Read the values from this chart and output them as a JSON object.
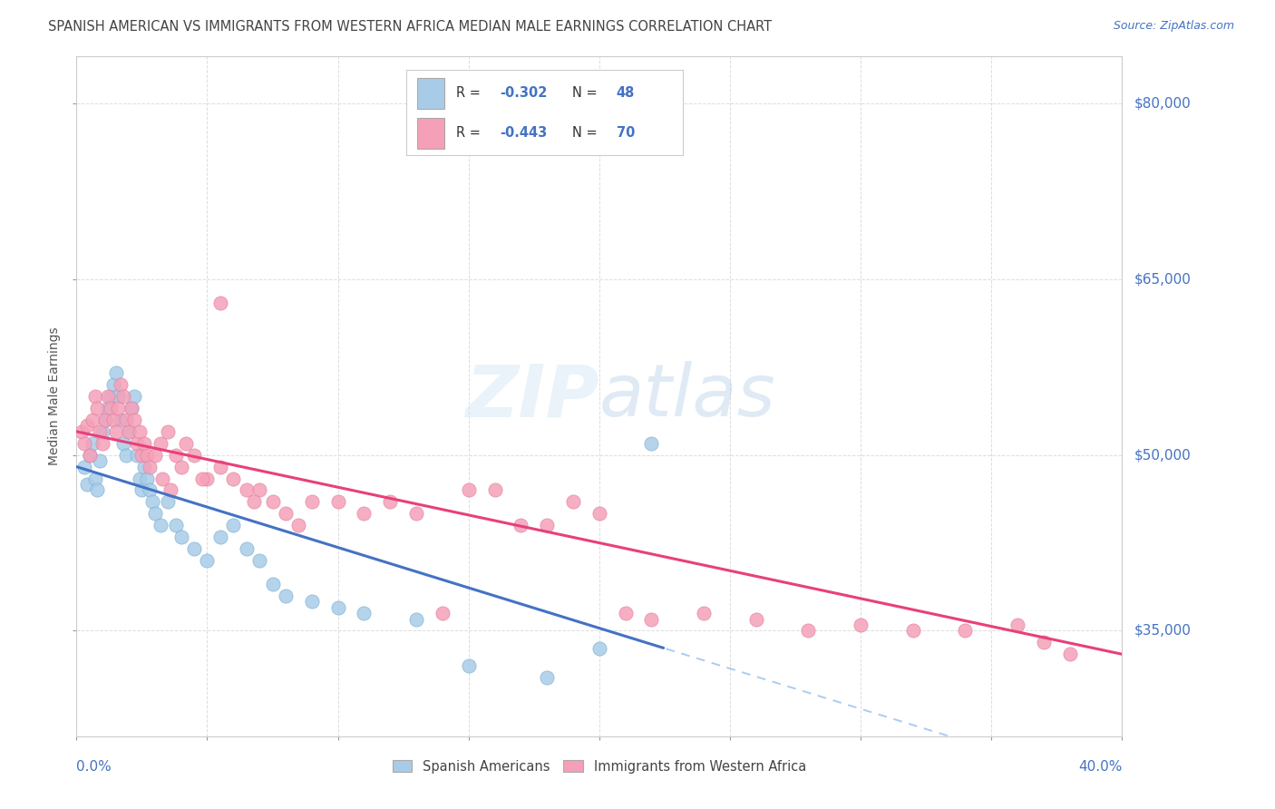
{
  "title": "SPANISH AMERICAN VS IMMIGRANTS FROM WESTERN AFRICA MEDIAN MALE EARNINGS CORRELATION CHART",
  "source": "Source: ZipAtlas.com",
  "ylabel": "Median Male Earnings",
  "y_ticks": [
    35000,
    50000,
    65000,
    80000
  ],
  "y_tick_labels": [
    "$35,000",
    "$50,000",
    "$65,000",
    "$80,000"
  ],
  "x_min": 0.0,
  "x_max": 40.0,
  "y_min": 26000,
  "y_max": 84000,
  "R_blue": -0.302,
  "N_blue": 48,
  "R_pink": -0.443,
  "N_pink": 70,
  "blue_color": "#a8cce8",
  "pink_color": "#f5a0b8",
  "blue_line_color": "#4472c4",
  "pink_line_color": "#e8407a",
  "axis_color": "#999999",
  "grid_color": "#dddddd",
  "label_color": "#4472c4",
  "title_color": "#444444",
  "legend_label_blue": "Spanish Americans",
  "legend_label_pink": "Immigrants from Western Africa",
  "blue_solid_end_x": 22.5,
  "blue_line_y0": 49000,
  "blue_line_y_at_22": 33500,
  "pink_line_y0": 52000,
  "pink_line_y1": 33000,
  "blue_x": [
    0.3,
    0.4,
    0.5,
    0.6,
    0.7,
    0.8,
    0.9,
    1.0,
    1.1,
    1.2,
    1.3,
    1.4,
    1.5,
    1.6,
    1.7,
    1.8,
    1.9,
    2.0,
    2.1,
    2.2,
    2.3,
    2.4,
    2.5,
    2.6,
    2.7,
    2.8,
    2.9,
    3.0,
    3.2,
    3.5,
    3.8,
    4.0,
    4.5,
    5.0,
    5.5,
    6.0,
    6.5,
    7.0,
    7.5,
    8.0,
    9.0,
    10.0,
    11.0,
    13.0,
    15.0,
    18.0,
    20.0,
    22.0
  ],
  "blue_y": [
    49000,
    47500,
    50000,
    51000,
    48000,
    47000,
    49500,
    52000,
    53000,
    54000,
    55000,
    56000,
    57000,
    55000,
    53000,
    51000,
    50000,
    52000,
    54000,
    55000,
    50000,
    48000,
    47000,
    49000,
    48000,
    47000,
    46000,
    45000,
    44000,
    46000,
    44000,
    43000,
    42000,
    41000,
    43000,
    44000,
    42000,
    41000,
    39000,
    38000,
    37500,
    37000,
    36500,
    36000,
    32000,
    31000,
    33500,
    51000
  ],
  "pink_x": [
    0.2,
    0.3,
    0.4,
    0.5,
    0.6,
    0.7,
    0.8,
    0.9,
    1.0,
    1.1,
    1.2,
    1.3,
    1.4,
    1.5,
    1.6,
    1.7,
    1.8,
    1.9,
    2.0,
    2.1,
    2.2,
    2.3,
    2.4,
    2.5,
    2.6,
    2.7,
    2.8,
    3.0,
    3.2,
    3.5,
    3.8,
    4.0,
    4.2,
    4.5,
    5.0,
    5.5,
    6.0,
    6.5,
    7.0,
    7.5,
    8.0,
    9.0,
    10.0,
    11.0,
    12.0,
    13.0,
    14.0,
    15.0,
    16.0,
    17.0,
    18.0,
    19.0,
    20.0,
    21.0,
    22.0,
    24.0,
    26.0,
    28.0,
    30.0,
    32.0,
    34.0,
    36.0,
    38.0,
    5.5,
    3.3,
    3.6,
    4.8,
    6.8,
    8.5,
    37.0
  ],
  "pink_y": [
    52000,
    51000,
    52500,
    50000,
    53000,
    55000,
    54000,
    52000,
    51000,
    53000,
    55000,
    54000,
    53000,
    52000,
    54000,
    56000,
    55000,
    53000,
    52000,
    54000,
    53000,
    51000,
    52000,
    50000,
    51000,
    50000,
    49000,
    50000,
    51000,
    52000,
    50000,
    49000,
    51000,
    50000,
    48000,
    49000,
    48000,
    47000,
    47000,
    46000,
    45000,
    46000,
    46000,
    45000,
    46000,
    45000,
    36500,
    47000,
    47000,
    44000,
    44000,
    46000,
    45000,
    36500,
    36000,
    36500,
    36000,
    35000,
    35500,
    35000,
    35000,
    35500,
    33000,
    63000,
    48000,
    47000,
    48000,
    46000,
    44000,
    34000
  ]
}
